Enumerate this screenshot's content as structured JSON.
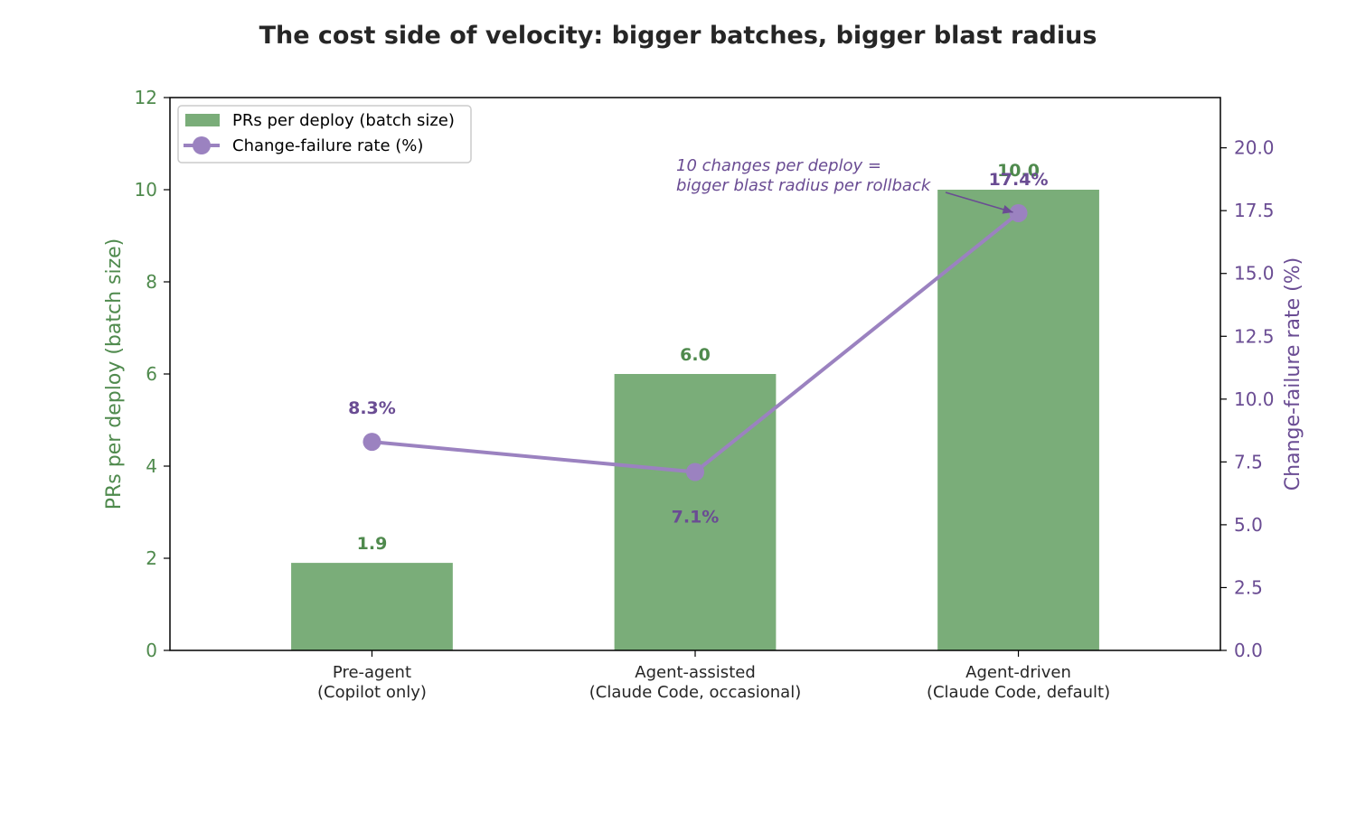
{
  "chart_data": {
    "type": "bar",
    "title": "The cost side of velocity: bigger batches, bigger blast radius",
    "categories": [
      [
        "Pre-agent",
        "(Copilot only)"
      ],
      [
        "Agent-assisted",
        "(Claude Code, occasional)"
      ],
      [
        "Agent-driven",
        "(Claude Code, default)"
      ]
    ],
    "series": [
      {
        "name": "PRs per deploy (batch size)",
        "type": "bar",
        "axis": "left",
        "values": [
          1.9,
          6.0,
          10.0
        ],
        "value_labels": [
          "1.9",
          "6.0",
          "10.0"
        ],
        "color": "#7aad79",
        "label_color": "#4f8a4d"
      },
      {
        "name": "Change-failure rate (%)",
        "type": "line",
        "axis": "right",
        "values": [
          8.3,
          7.1,
          17.4
        ],
        "value_labels": [
          "8.3%",
          "7.1%",
          "17.4%"
        ],
        "color": "#9b82c0",
        "label_color": "#6a4c93"
      }
    ],
    "ylabel": "PRs per deploy (batch size)",
    "ylim": [
      0,
      12
    ],
    "yticks": [
      "0",
      "2",
      "4",
      "6",
      "8",
      "10",
      "12"
    ],
    "ylabel_color": "#4f8a4d",
    "y2label": "Change-failure rate (%)",
    "y2lim": [
      0,
      22
    ],
    "y2ticks": [
      "0.0",
      "2.5",
      "5.0",
      "7.5",
      "10.0",
      "12.5",
      "15.0",
      "17.5",
      "20.0"
    ],
    "y2label_color": "#6a4c93",
    "legend": "top-left",
    "grid": false,
    "annotation": {
      "lines": [
        "10 changes per deploy =",
        "bigger blast radius per rollback"
      ],
      "target_category": 2,
      "target_value": 17.4,
      "color": "#6a4c93"
    }
  }
}
